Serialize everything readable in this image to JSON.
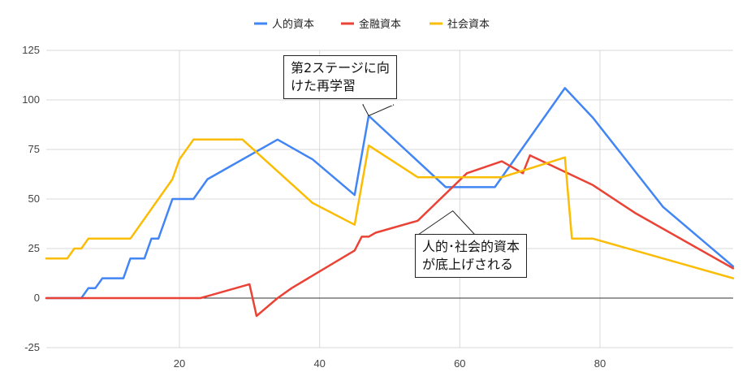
{
  "chart_data": {
    "type": "line",
    "xlim": [
      1,
      99
    ],
    "ylim": [
      -25,
      125
    ],
    "x_ticks": [
      20,
      40,
      60,
      80
    ],
    "y_ticks": [
      -25,
      0,
      25,
      50,
      75,
      100,
      125
    ],
    "x_tick_labels": [
      "20",
      "40",
      "60",
      "80"
    ],
    "y_tick_labels": [
      "-25",
      "0",
      "25",
      "50",
      "75",
      "100",
      "125"
    ],
    "grid": true,
    "legend_position": "top",
    "series": [
      {
        "name": "人的資本",
        "color": "#4285f4",
        "points": [
          [
            1,
            0
          ],
          [
            6,
            0
          ],
          [
            7,
            5
          ],
          [
            8,
            5
          ],
          [
            9,
            10
          ],
          [
            12,
            10
          ],
          [
            13,
            20
          ],
          [
            15,
            20
          ],
          [
            16,
            30
          ],
          [
            17,
            30
          ],
          [
            19,
            50
          ],
          [
            22,
            50
          ],
          [
            24,
            60
          ],
          [
            34,
            80
          ],
          [
            39,
            70
          ],
          [
            45,
            52
          ],
          [
            47,
            92
          ],
          [
            58,
            56
          ],
          [
            65,
            56
          ],
          [
            75,
            106
          ],
          [
            79,
            91
          ],
          [
            89,
            46
          ],
          [
            99,
            16
          ]
        ]
      },
      {
        "name": "金融資本",
        "color": "#ea4335",
        "points": [
          [
            1,
            0
          ],
          [
            23,
            0
          ],
          [
            30,
            7
          ],
          [
            31,
            -9
          ],
          [
            34,
            0
          ],
          [
            36,
            5
          ],
          [
            45,
            24
          ],
          [
            46,
            31
          ],
          [
            47,
            31
          ],
          [
            48,
            33
          ],
          [
            54,
            39
          ],
          [
            61,
            63
          ],
          [
            66,
            69
          ],
          [
            69,
            63
          ],
          [
            70,
            72
          ],
          [
            79,
            57
          ],
          [
            85,
            43
          ],
          [
            99,
            15
          ]
        ]
      },
      {
        "name": "社会資本",
        "color": "#fbbc04",
        "points": [
          [
            1,
            20
          ],
          [
            4,
            20
          ],
          [
            5,
            25
          ],
          [
            6,
            25
          ],
          [
            7,
            30
          ],
          [
            13,
            30
          ],
          [
            19,
            60
          ],
          [
            20,
            70
          ],
          [
            22,
            80
          ],
          [
            29,
            80
          ],
          [
            39,
            48
          ],
          [
            45,
            37
          ],
          [
            47,
            77
          ],
          [
            54,
            61
          ],
          [
            66,
            61
          ],
          [
            75,
            71
          ],
          [
            76,
            30
          ],
          [
            79,
            30
          ],
          [
            99,
            10
          ]
        ]
      }
    ],
    "annotations": [
      {
        "lines": [
          "第2ステージに向",
          "けた再学習"
        ],
        "target_x": 47,
        "target_y": 92
      },
      {
        "lines": [
          "人的･社会的資本",
          "が底上げされる"
        ],
        "target_x": 59,
        "target_y": 44
      }
    ]
  }
}
